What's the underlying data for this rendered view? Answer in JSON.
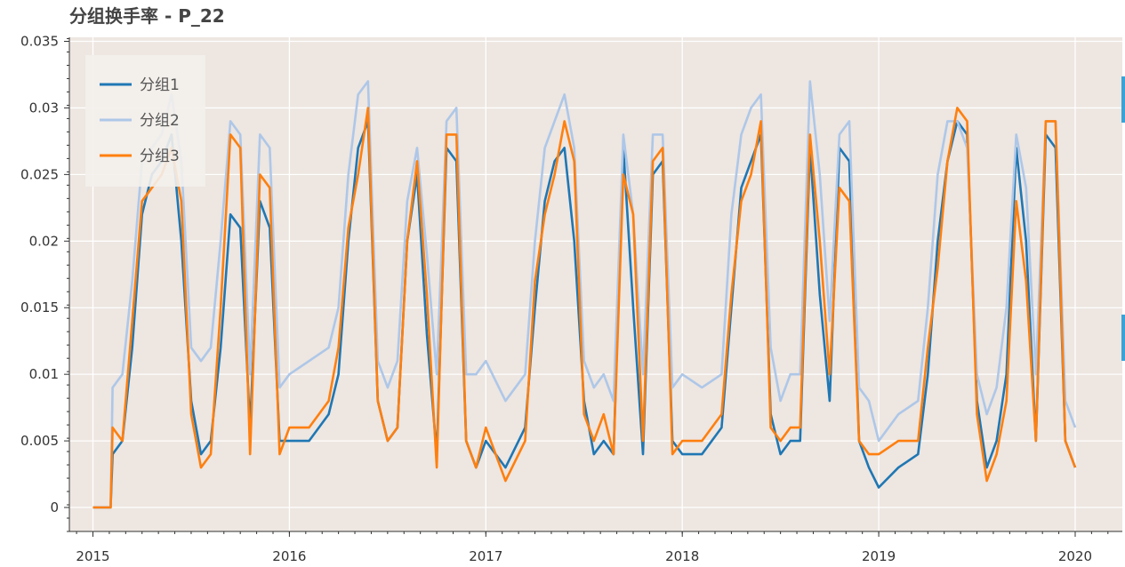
{
  "chart_data": {
    "type": "line",
    "title": "分组换手率 - P_22",
    "xlabel": "",
    "ylabel": "",
    "ylim": [
      -0.0018,
      0.0353
    ],
    "xlim": [
      2014.88,
      2020.24
    ],
    "y_ticks": [
      0,
      0.005,
      0.01,
      0.015,
      0.02,
      0.025,
      0.03,
      0.035
    ],
    "y_tick_labels": [
      "0",
      "0.005",
      "0.01",
      "0.015",
      "0.02",
      "0.025",
      "0.03",
      "0.035"
    ],
    "x_ticks": [
      2015,
      2016,
      2017,
      2018,
      2019,
      2020
    ],
    "x_tick_labels": [
      "2015",
      "2016",
      "2017",
      "2018",
      "2019",
      "2020"
    ],
    "grid": true,
    "background": "#ede6e1",
    "legend_position": "top-left",
    "series": [
      {
        "name": "分组1",
        "color": "#1f77b4",
        "x": [
          2015.0,
          2015.09,
          2015.1,
          2015.15,
          2015.2,
          2015.25,
          2015.3,
          2015.35,
          2015.4,
          2015.45,
          2015.5,
          2015.55,
          2015.6,
          2015.65,
          2015.7,
          2015.75,
          2015.8,
          2015.85,
          2015.9,
          2015.95,
          2016.0,
          2016.1,
          2016.2,
          2016.25,
          2016.3,
          2016.35,
          2016.4,
          2016.45,
          2016.5,
          2016.55,
          2016.6,
          2016.65,
          2016.7,
          2016.75,
          2016.8,
          2016.85,
          2016.9,
          2016.95,
          2017.0,
          2017.1,
          2017.2,
          2017.25,
          2017.3,
          2017.35,
          2017.4,
          2017.45,
          2017.5,
          2017.55,
          2017.6,
          2017.65,
          2017.7,
          2017.75,
          2017.8,
          2017.85,
          2017.9,
          2017.95,
          2018.0,
          2018.1,
          2018.2,
          2018.25,
          2018.3,
          2018.35,
          2018.4,
          2018.45,
          2018.5,
          2018.55,
          2018.6,
          2018.65,
          2018.7,
          2018.75,
          2018.8,
          2018.85,
          2018.9,
          2018.95,
          2019.0,
          2019.1,
          2019.2,
          2019.25,
          2019.3,
          2019.35,
          2019.4,
          2019.45,
          2019.5,
          2019.55,
          2019.6,
          2019.65,
          2019.7,
          2019.75,
          2019.8,
          2019.85,
          2019.9,
          2019.95,
          2020.0
        ],
        "values": [
          0,
          0,
          0.004,
          0.005,
          0.012,
          0.022,
          0.025,
          0.026,
          0.028,
          0.02,
          0.008,
          0.004,
          0.005,
          0.012,
          0.022,
          0.021,
          0.006,
          0.023,
          0.021,
          0.005,
          0.005,
          0.005,
          0.007,
          0.01,
          0.02,
          0.027,
          0.029,
          0.008,
          0.005,
          0.006,
          0.02,
          0.025,
          0.013,
          0.004,
          0.027,
          0.026,
          0.005,
          0.003,
          0.005,
          0.003,
          0.006,
          0.015,
          0.023,
          0.026,
          0.027,
          0.02,
          0.008,
          0.004,
          0.005,
          0.004,
          0.027,
          0.015,
          0.004,
          0.025,
          0.026,
          0.005,
          0.004,
          0.004,
          0.006,
          0.015,
          0.024,
          0.026,
          0.028,
          0.007,
          0.004,
          0.005,
          0.005,
          0.027,
          0.016,
          0.008,
          0.027,
          0.026,
          0.005,
          0.003,
          0.0015,
          0.003,
          0.004,
          0.01,
          0.02,
          0.026,
          0.029,
          0.028,
          0.008,
          0.003,
          0.005,
          0.01,
          0.027,
          0.02,
          0.005,
          0.028,
          0.027,
          0.005,
          0.003
        ]
      },
      {
        "name": "分组2",
        "color": "#aec7e8",
        "x": [
          2015.0,
          2015.09,
          2015.1,
          2015.15,
          2015.2,
          2015.25,
          2015.3,
          2015.35,
          2015.4,
          2015.45,
          2015.5,
          2015.55,
          2015.6,
          2015.65,
          2015.7,
          2015.75,
          2015.8,
          2015.85,
          2015.9,
          2015.95,
          2016.0,
          2016.1,
          2016.2,
          2016.25,
          2016.3,
          2016.35,
          2016.4,
          2016.45,
          2016.5,
          2016.55,
          2016.6,
          2016.65,
          2016.7,
          2016.75,
          2016.8,
          2016.85,
          2016.9,
          2016.95,
          2017.0,
          2017.1,
          2017.2,
          2017.25,
          2017.3,
          2017.35,
          2017.4,
          2017.45,
          2017.5,
          2017.55,
          2017.6,
          2017.65,
          2017.7,
          2017.75,
          2017.8,
          2017.85,
          2017.9,
          2017.95,
          2018.0,
          2018.1,
          2018.2,
          2018.25,
          2018.3,
          2018.35,
          2018.4,
          2018.45,
          2018.5,
          2018.55,
          2018.6,
          2018.65,
          2018.7,
          2018.75,
          2018.8,
          2018.85,
          2018.9,
          2018.95,
          2019.0,
          2019.1,
          2019.2,
          2019.25,
          2019.3,
          2019.35,
          2019.4,
          2019.45,
          2019.5,
          2019.55,
          2019.6,
          2019.65,
          2019.7,
          2019.75,
          2019.8,
          2019.85,
          2019.9,
          2019.95,
          2020.0
        ],
        "values": [
          0,
          0,
          0.009,
          0.01,
          0.017,
          0.026,
          0.027,
          0.028,
          0.031,
          0.026,
          0.012,
          0.011,
          0.012,
          0.02,
          0.029,
          0.028,
          0.01,
          0.028,
          0.027,
          0.009,
          0.01,
          0.011,
          0.012,
          0.015,
          0.025,
          0.031,
          0.032,
          0.011,
          0.009,
          0.011,
          0.023,
          0.027,
          0.019,
          0.01,
          0.029,
          0.03,
          0.01,
          0.01,
          0.011,
          0.008,
          0.01,
          0.02,
          0.027,
          0.029,
          0.031,
          0.027,
          0.011,
          0.009,
          0.01,
          0.008,
          0.028,
          0.022,
          0.01,
          0.028,
          0.028,
          0.009,
          0.01,
          0.009,
          0.01,
          0.022,
          0.028,
          0.03,
          0.031,
          0.012,
          0.008,
          0.01,
          0.01,
          0.032,
          0.025,
          0.014,
          0.028,
          0.029,
          0.009,
          0.008,
          0.005,
          0.007,
          0.008,
          0.015,
          0.025,
          0.029,
          0.029,
          0.027,
          0.01,
          0.007,
          0.009,
          0.015,
          0.028,
          0.024,
          0.01,
          0.029,
          0.029,
          0.008,
          0.006
        ]
      },
      {
        "name": "分组3",
        "color": "#ff7f0e",
        "x": [
          2015.0,
          2015.09,
          2015.1,
          2015.15,
          2015.2,
          2015.25,
          2015.3,
          2015.35,
          2015.4,
          2015.45,
          2015.5,
          2015.55,
          2015.6,
          2015.65,
          2015.7,
          2015.75,
          2015.8,
          2015.85,
          2015.9,
          2015.95,
          2016.0,
          2016.1,
          2016.2,
          2016.25,
          2016.3,
          2016.35,
          2016.4,
          2016.45,
          2016.5,
          2016.55,
          2016.6,
          2016.65,
          2016.7,
          2016.75,
          2016.8,
          2016.85,
          2016.9,
          2016.95,
          2017.0,
          2017.1,
          2017.2,
          2017.25,
          2017.3,
          2017.35,
          2017.4,
          2017.45,
          2017.5,
          2017.55,
          2017.6,
          2017.65,
          2017.7,
          2017.75,
          2017.8,
          2017.85,
          2017.9,
          2017.95,
          2018.0,
          2018.1,
          2018.2,
          2018.25,
          2018.3,
          2018.35,
          2018.4,
          2018.45,
          2018.5,
          2018.55,
          2018.6,
          2018.65,
          2018.7,
          2018.75,
          2018.8,
          2018.85,
          2018.9,
          2018.95,
          2019.0,
          2019.1,
          2019.2,
          2019.25,
          2019.3,
          2019.35,
          2019.4,
          2019.45,
          2019.5,
          2019.55,
          2019.6,
          2019.65,
          2019.7,
          2019.75,
          2019.8,
          2019.85,
          2019.9,
          2019.95,
          2020.0
        ],
        "values": [
          0,
          0,
          0.006,
          0.005,
          0.014,
          0.023,
          0.024,
          0.025,
          0.027,
          0.023,
          0.007,
          0.003,
          0.004,
          0.015,
          0.028,
          0.027,
          0.004,
          0.025,
          0.024,
          0.004,
          0.006,
          0.006,
          0.008,
          0.012,
          0.021,
          0.025,
          0.03,
          0.008,
          0.005,
          0.006,
          0.02,
          0.026,
          0.016,
          0.003,
          0.028,
          0.028,
          0.005,
          0.003,
          0.006,
          0.002,
          0.005,
          0.017,
          0.022,
          0.025,
          0.029,
          0.026,
          0.007,
          0.005,
          0.007,
          0.004,
          0.025,
          0.022,
          0.005,
          0.026,
          0.027,
          0.004,
          0.005,
          0.005,
          0.007,
          0.016,
          0.023,
          0.025,
          0.029,
          0.006,
          0.005,
          0.006,
          0.006,
          0.028,
          0.02,
          0.01,
          0.024,
          0.023,
          0.005,
          0.004,
          0.004,
          0.005,
          0.005,
          0.012,
          0.018,
          0.026,
          0.03,
          0.029,
          0.007,
          0.002,
          0.004,
          0.008,
          0.023,
          0.017,
          0.005,
          0.029,
          0.029,
          0.005,
          0.003
        ]
      }
    ]
  }
}
